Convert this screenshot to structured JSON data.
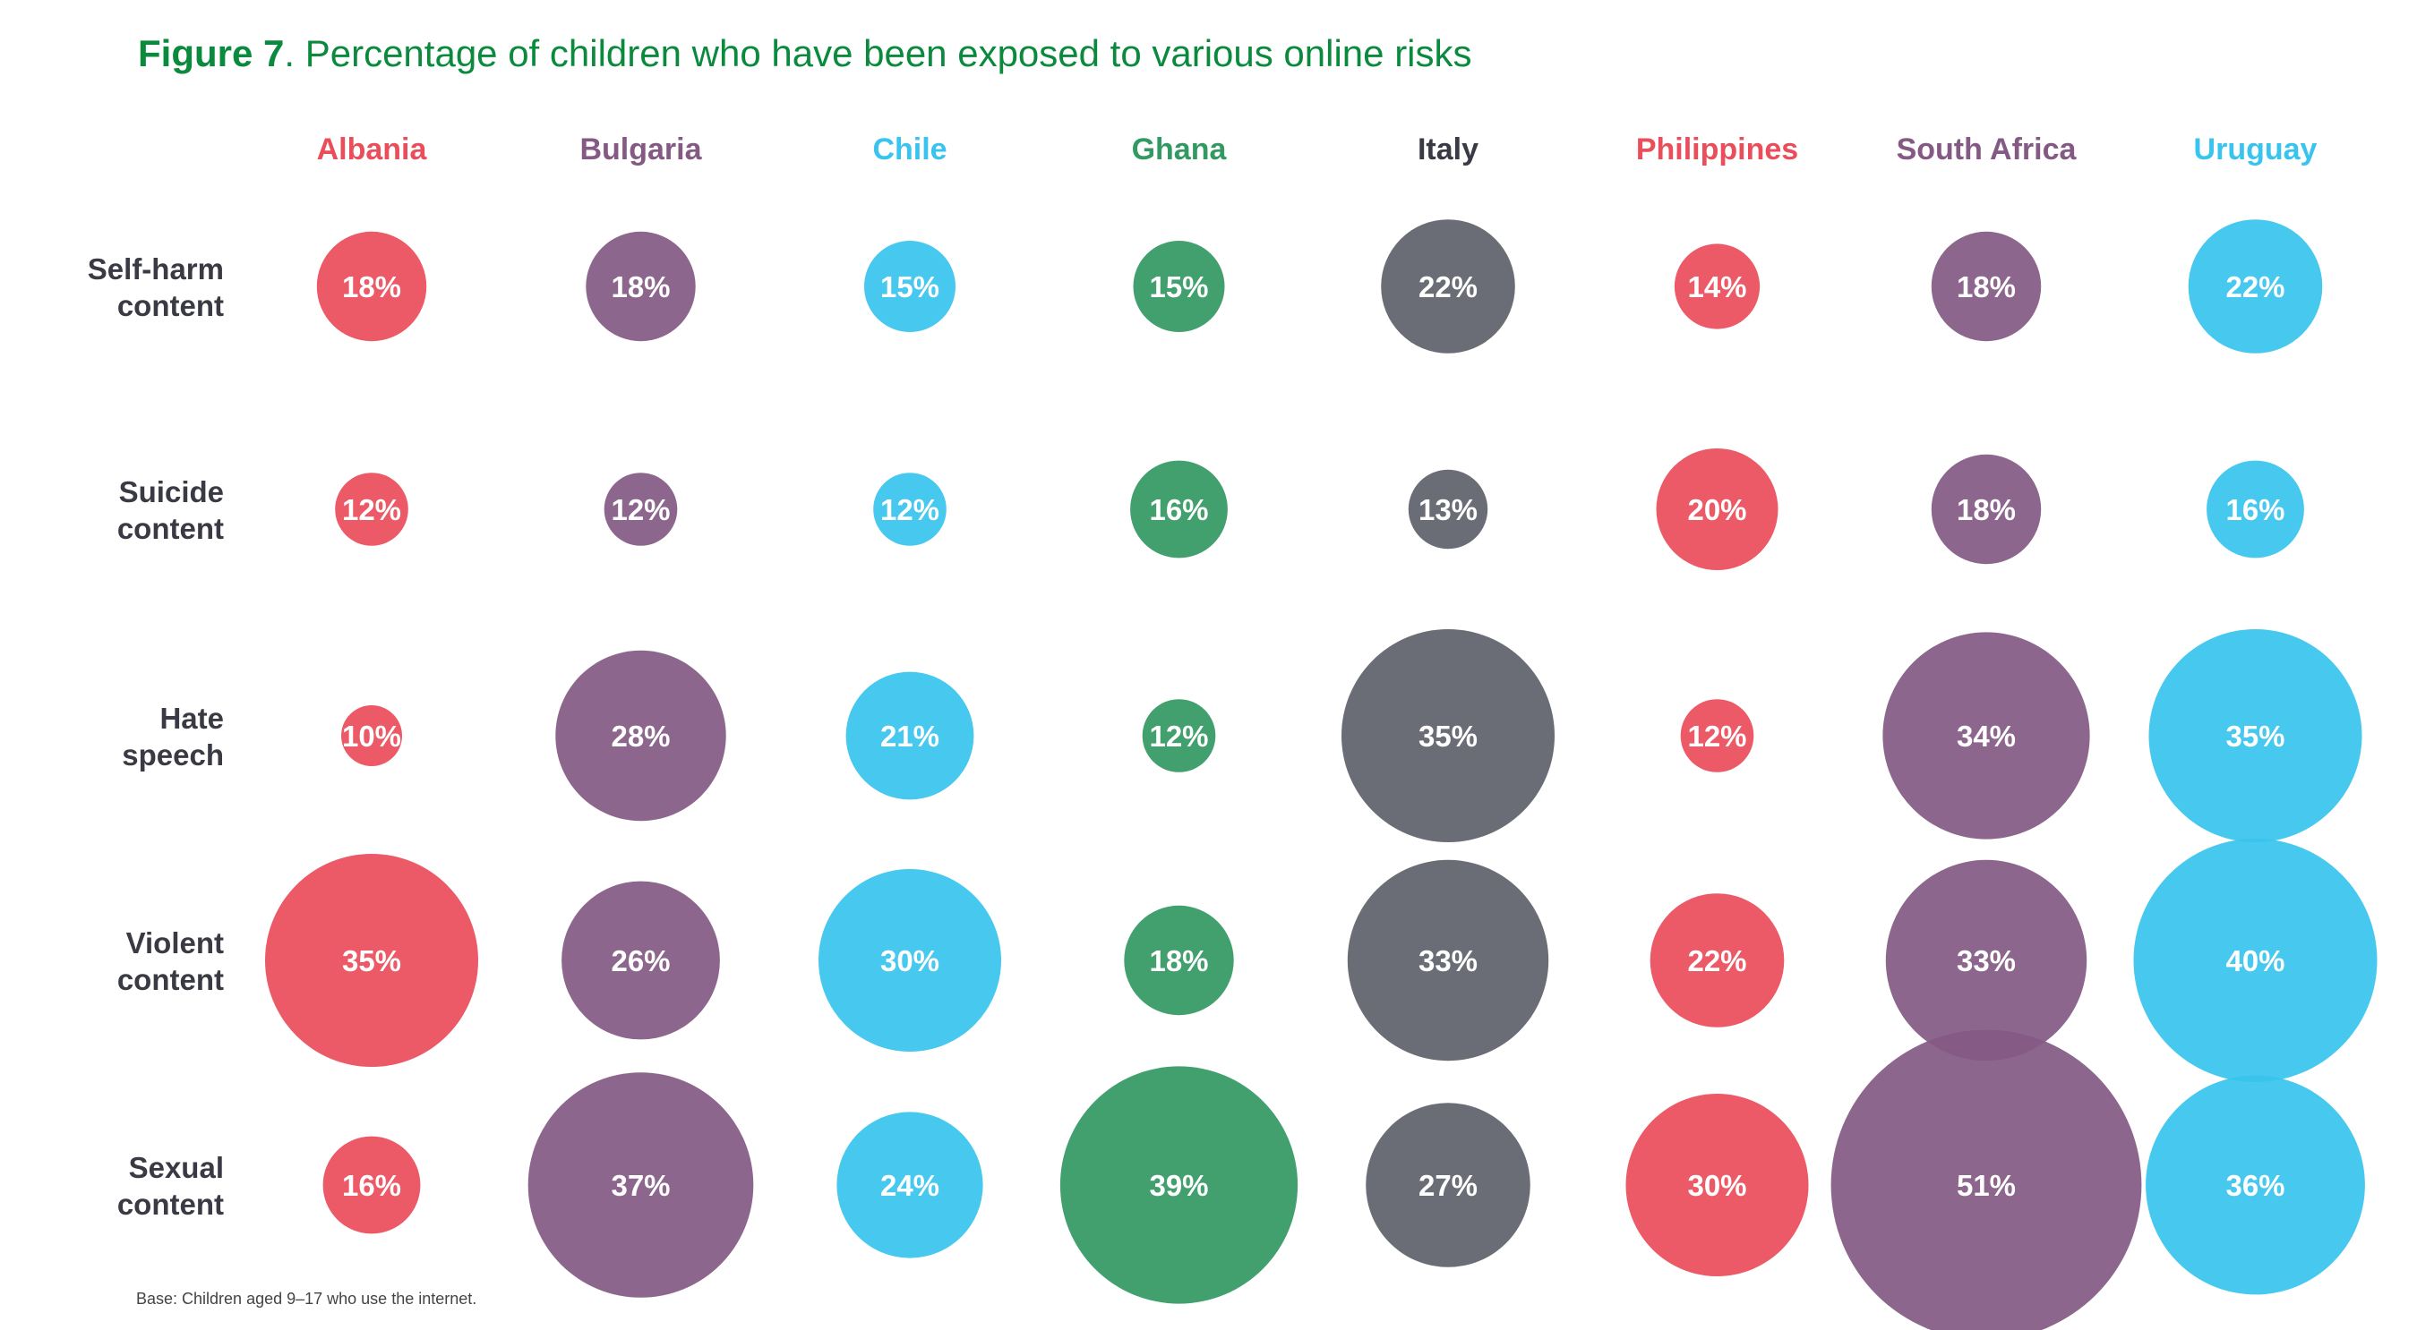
{
  "colors": {
    "title": "#0b8a3e",
    "red": "#e94e5a",
    "purple": "#845a84",
    "cyan": "#38c4ee",
    "green": "#339962",
    "grey": "#5f626b",
    "row_label": "#3a3a44"
  },
  "chart_data": {
    "type": "bubble-matrix",
    "title_prefix": "Figure 7",
    "title_text": ". Percentage of children who have been exposed to various online risks",
    "footnote": "Base: Children aged 9–17 who use the internet.",
    "countries": [
      {
        "name": "Albania",
        "color": "#e94e5a"
      },
      {
        "name": "Bulgaria",
        "color": "#845a84"
      },
      {
        "name": "Chile",
        "color": "#38c4ee"
      },
      {
        "name": "Ghana",
        "color": "#339962"
      },
      {
        "name": "Italy",
        "color": "#5f626b"
      },
      {
        "name": "Philippines",
        "color": "#e94e5a"
      },
      {
        "name": "South Africa",
        "color": "#845a84"
      },
      {
        "name": "Uruguay",
        "color": "#38c4ee"
      }
    ],
    "rows": [
      {
        "label_lines": [
          "Self-harm",
          "content"
        ],
        "values": [
          18,
          18,
          15,
          15,
          22,
          14,
          18,
          22
        ]
      },
      {
        "label_lines": [
          "Suicide",
          "content"
        ],
        "values": [
          12,
          12,
          12,
          16,
          13,
          20,
          18,
          16
        ]
      },
      {
        "label_lines": [
          "Hate",
          "speech"
        ],
        "values": [
          10,
          28,
          21,
          12,
          35,
          12,
          34,
          35
        ]
      },
      {
        "label_lines": [
          "Violent",
          "content"
        ],
        "values": [
          35,
          26,
          30,
          18,
          33,
          22,
          33,
          40
        ]
      },
      {
        "label_lines": [
          "Sexual",
          "content"
        ],
        "values": [
          16,
          37,
          24,
          39,
          27,
          30,
          51,
          36
        ]
      }
    ]
  }
}
